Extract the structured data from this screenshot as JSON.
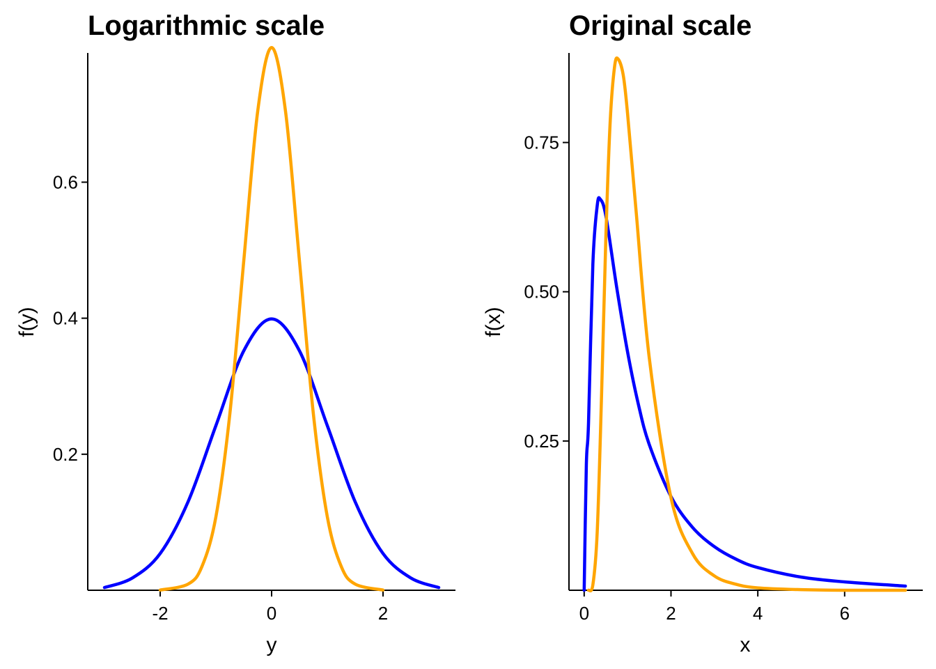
{
  "chart_data": [
    {
      "type": "line",
      "title": "Logarithmic scale",
      "xlabel": "y",
      "ylabel": "f(y)",
      "xlim": [
        -3.3,
        3.3
      ],
      "ylim": [
        0.0,
        0.79
      ],
      "xticks": [
        -2,
        0,
        2
      ],
      "xtick_labels": [
        "-2",
        "0",
        "2"
      ],
      "yticks": [
        0.2,
        0.4,
        0.6
      ],
      "ytick_labels": [
        "0.2",
        "0.4",
        "0.6"
      ],
      "grid": false,
      "legend": "none",
      "series": [
        {
          "color": "#0000ff",
          "x": [
            -3.0,
            -2.5,
            -2.0,
            -1.5,
            -1.0,
            -0.5,
            0.0,
            0.5,
            1.0,
            1.5,
            2.0,
            2.5,
            3.0
          ],
          "y": [
            0.004,
            0.018,
            0.054,
            0.13,
            0.242,
            0.352,
            0.399,
            0.352,
            0.242,
            0.13,
            0.054,
            0.018,
            0.004
          ]
        },
        {
          "color": "#ffa500",
          "x": [
            -2.0,
            -1.5,
            -1.25,
            -1.0,
            -0.75,
            -0.5,
            -0.25,
            0.0,
            0.25,
            0.5,
            0.75,
            1.0,
            1.25,
            1.5,
            2.0
          ],
          "y": [
            0.0003,
            0.009,
            0.035,
            0.108,
            0.259,
            0.484,
            0.704,
            0.798,
            0.704,
            0.484,
            0.259,
            0.108,
            0.035,
            0.009,
            0.0003
          ]
        }
      ]
    },
    {
      "type": "line",
      "title": "Original scale",
      "xlabel": "x",
      "ylabel": "f(x)",
      "xlim": [
        -0.35,
        7.8
      ],
      "ylim": [
        0.0,
        0.9
      ],
      "xticks": [
        0,
        2,
        4,
        6
      ],
      "xtick_labels": [
        "0",
        "2",
        "4",
        "6"
      ],
      "yticks": [
        0.25,
        0.5,
        0.75
      ],
      "ytick_labels": [
        "0.25",
        "0.50",
        "0.75"
      ],
      "grid": false,
      "legend": "none",
      "series": [
        {
          "color": "#0000ff",
          "x": [
            0.0,
            0.05,
            0.1,
            0.2,
            0.3,
            0.37,
            0.5,
            0.75,
            1.0,
            1.25,
            1.5,
            2.0,
            2.5,
            3.0,
            3.5,
            4.0,
            5.0,
            6.0,
            7.4
          ],
          "y": [
            0.0,
            0.21,
            0.28,
            0.546,
            0.644,
            0.655,
            0.627,
            0.507,
            0.399,
            0.311,
            0.244,
            0.157,
            0.105,
            0.073,
            0.052,
            0.038,
            0.022,
            0.014,
            0.007
          ]
        },
        {
          "color": "#ffa500",
          "x": [
            0.1,
            0.2,
            0.3,
            0.4,
            0.5,
            0.6,
            0.7,
            0.78,
            0.9,
            1.0,
            1.2,
            1.5,
            2.0,
            2.5,
            3.0,
            3.5,
            4.0,
            5.0,
            6.0,
            7.4
          ],
          "y": [
            0.0,
            0.009,
            0.097,
            0.326,
            0.592,
            0.786,
            0.877,
            0.89,
            0.863,
            0.798,
            0.632,
            0.389,
            0.155,
            0.061,
            0.024,
            0.01,
            0.004,
            0.001,
            0.0,
            0.0
          ]
        }
      ]
    }
  ]
}
